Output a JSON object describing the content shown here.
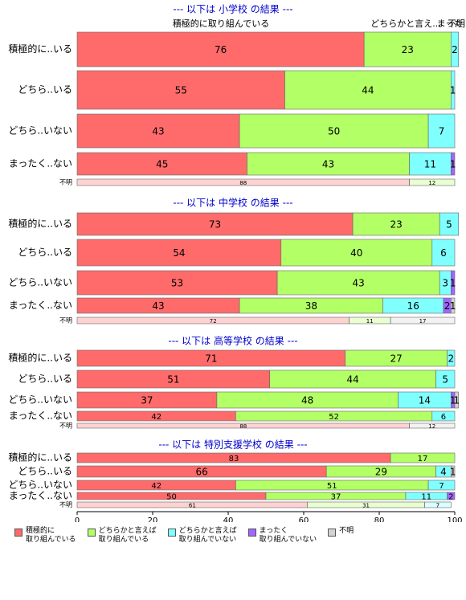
{
  "chart_data": [
    {
      "type": "stacked-bar-horizontal",
      "title": "--- 以下は 小学校 の結果 ---",
      "column_labels": [
        "積極的に取り組んでいる",
        "どちらかと言え...",
        "まった",
        "不明"
      ],
      "categories": [
        "積極的に..いる",
        "どちら..いる",
        "どちら..いない",
        "まったく..ない",
        "不明"
      ],
      "xlim": [
        0,
        100
      ],
      "series": [
        {
          "name": "積極的に\n取り組んでいる",
          "color": "#ff6b6b",
          "values": [
            76,
            55,
            43,
            45,
            88
          ]
        },
        {
          "name": "どちらかと言えば\n取り組んでいる",
          "color": "#b3ff66",
          "values": [
            23,
            44,
            50,
            43,
            12
          ]
        },
        {
          "name": "どちらかと言えば\n取り組んでいない",
          "color": "#80ffff",
          "values": [
            2,
            1,
            7,
            11,
            null
          ]
        },
        {
          "name": "まったく\n取り組んでいない",
          "color": "#a066ff",
          "values": [
            null,
            null,
            null,
            1,
            null
          ]
        },
        {
          "name": "不明",
          "color": "#d3d3d3",
          "values": [
            null,
            null,
            null,
            null,
            null
          ]
        }
      ]
    },
    {
      "type": "stacked-bar-horizontal",
      "title": "--- 以下は 中学校 の結果 ---",
      "categories": [
        "積極的に..いる",
        "どちら..いる",
        "どちら..いない",
        "まったく..ない",
        "不明"
      ],
      "xlim": [
        0,
        100
      ],
      "series": [
        {
          "name": "積極的に\n取り組んでいる",
          "color": "#ff6b6b",
          "values": [
            73,
            54,
            53,
            43,
            72
          ]
        },
        {
          "name": "どちらかと言えば\n取り組んでいる",
          "color": "#b3ff66",
          "values": [
            23,
            40,
            43,
            38,
            11
          ]
        },
        {
          "name": "どちらかと言えば\n取り組んでいない",
          "color": "#80ffff",
          "values": [
            5,
            6,
            3,
            16,
            null
          ]
        },
        {
          "name": "まったく\n取り組んでいない",
          "color": "#a066ff",
          "values": [
            null,
            null,
            1,
            2,
            null
          ]
        },
        {
          "name": "不明",
          "color": "#d3d3d3",
          "values": [
            null,
            null,
            null,
            1,
            17
          ]
        }
      ]
    },
    {
      "type": "stacked-bar-horizontal",
      "title": "--- 以下は 高等学校 の結果 ---",
      "categories": [
        "積極的に..いる",
        "どちら..いる",
        "どちら..いない",
        "まったく..ない",
        "不明"
      ],
      "xlim": [
        0,
        100
      ],
      "series": [
        {
          "name": "積極的に\n取り組んでいる",
          "color": "#ff6b6b",
          "values": [
            71,
            51,
            37,
            42,
            88
          ]
        },
        {
          "name": "どちらかと言えば\n取り組んでいる",
          "color": "#b3ff66",
          "values": [
            27,
            44,
            48,
            52,
            null
          ]
        },
        {
          "name": "どちらかと言えば\n取り組んでいない",
          "color": "#80ffff",
          "values": [
            2,
            5,
            14,
            6,
            null
          ]
        },
        {
          "name": "まったく\n取り組んでいない",
          "color": "#a066ff",
          "values": [
            null,
            null,
            1,
            null,
            null
          ]
        },
        {
          "name": "不明",
          "color": "#d3d3d3",
          "values": [
            null,
            null,
            1,
            null,
            12
          ]
        }
      ]
    },
    {
      "type": "stacked-bar-horizontal",
      "title": "--- 以下は 特別支援学校 の結果 ---",
      "categories": [
        "積極的に..いる",
        "どちら..いる",
        "どちら..いない",
        "まったく..ない",
        "不明"
      ],
      "xlim": [
        0,
        100
      ],
      "xticks": [
        0,
        20,
        40,
        60,
        80,
        100
      ],
      "series": [
        {
          "name": "積極的に\n取り組んでいる",
          "color": "#ff6b6b",
          "values": [
            83,
            66,
            42,
            50,
            61
          ]
        },
        {
          "name": "どちらかと言えば\n取り組んでいる",
          "color": "#b3ff66",
          "values": [
            17,
            29,
            51,
            37,
            31
          ]
        },
        {
          "name": "どちらかと言えば\n取り組んでいない",
          "color": "#80ffff",
          "values": [
            null,
            4,
            7,
            11,
            7
          ]
        },
        {
          "name": "まったく\n取り組んでいない",
          "color": "#a066ff",
          "values": [
            null,
            null,
            null,
            2,
            null
          ]
        },
        {
          "name": "不明",
          "color": "#d3d3d3",
          "values": [
            null,
            1,
            null,
            null,
            null
          ]
        }
      ]
    }
  ]
}
